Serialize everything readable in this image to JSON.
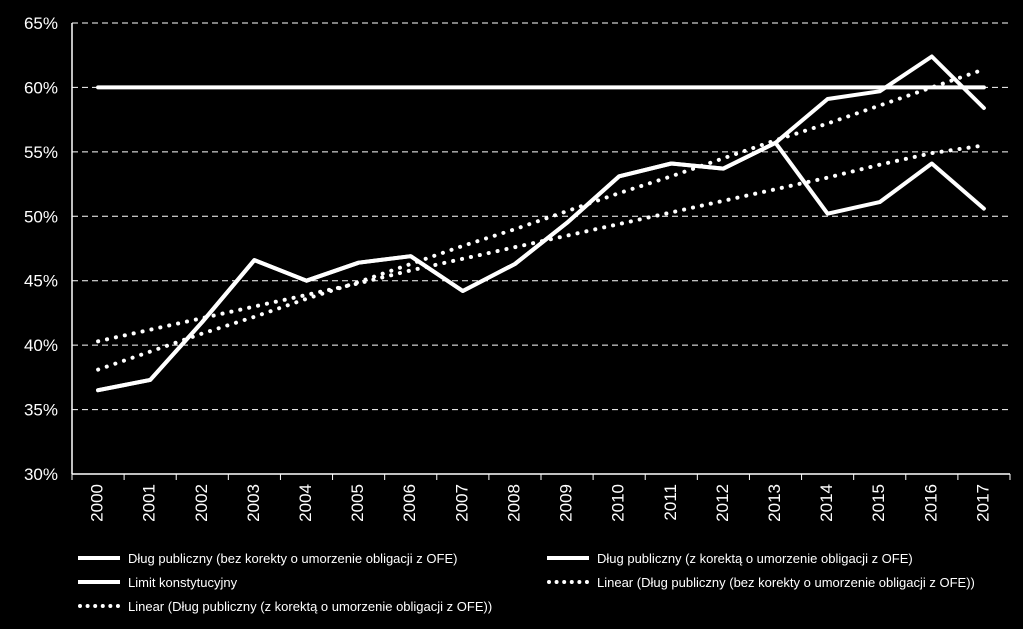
{
  "chart_data": {
    "type": "line",
    "categories": [
      "2000",
      "2001",
      "2002",
      "2003",
      "2004",
      "2005",
      "2006",
      "2007",
      "2008",
      "2009",
      "2010",
      "2011",
      "2012",
      "2013",
      "2014",
      "2015",
      "2016",
      "2017"
    ],
    "ylim": [
      0.3,
      0.65
    ],
    "yticks": [
      "30%",
      "35%",
      "40%",
      "45%",
      "50%",
      "55%",
      "60%",
      "65%"
    ],
    "ytick_values": [
      0.3,
      0.35,
      0.4,
      0.45,
      0.5,
      0.55,
      0.6,
      0.65
    ],
    "grid": "horizontal dashed",
    "legend_position": "bottom",
    "series": [
      {
        "name": "Dług publiczny (bez korekty o umorzenie obligacji z OFE)",
        "style": "solid",
        "values": [
          0.365,
          0.373,
          0.418,
          0.466,
          0.45,
          0.464,
          0.469,
          0.442,
          0.463,
          0.495,
          0.531,
          0.541,
          0.537,
          0.557,
          0.591,
          0.597,
          0.624,
          0.584
        ]
      },
      {
        "name": "Dług publiczny (z korektą o umorzenie obligacji z OFE)",
        "style": "solid",
        "values": [
          0.365,
          0.373,
          0.418,
          0.466,
          0.45,
          0.464,
          0.469,
          0.442,
          0.463,
          0.495,
          0.531,
          0.541,
          0.537,
          0.557,
          0.502,
          0.511,
          0.541,
          0.506
        ]
      },
      {
        "name": "Limit konstytucyjny",
        "style": "solid",
        "values": [
          0.6,
          0.6,
          0.6,
          0.6,
          0.6,
          0.6,
          0.6,
          0.6,
          0.6,
          0.6,
          0.6,
          0.6,
          0.6,
          0.6,
          0.6,
          0.6,
          0.6,
          0.6
        ]
      },
      {
        "name": "Linear (Dług publiczny (bez korekty o umorzenie obligacji z OFE))",
        "style": "dotted",
        "values": [
          0.381,
          0.395,
          0.409,
          0.422,
          0.436,
          0.449,
          0.463,
          0.477,
          0.49,
          0.504,
          0.518,
          0.531,
          0.545,
          0.559,
          0.572,
          0.586,
          0.6,
          0.614
        ]
      },
      {
        "name": "Linear (Dług publiczny (z korektą o umorzenie obligacji z OFE))",
        "style": "dotted",
        "values": [
          0.403,
          0.412,
          0.421,
          0.43,
          0.439,
          0.448,
          0.458,
          0.467,
          0.476,
          0.485,
          0.494,
          0.503,
          0.512,
          0.521,
          0.53,
          0.54,
          0.549,
          0.555
        ]
      }
    ]
  }
}
